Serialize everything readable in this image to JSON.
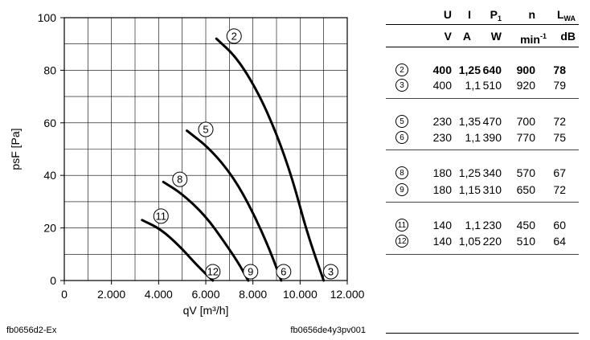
{
  "chart_data": {
    "type": "line",
    "xlabel": "qV [m³/h]",
    "ylabel": "psF [Pa]",
    "xlim": [
      0,
      12000
    ],
    "ylim": [
      0,
      100
    ],
    "x_ticks": [
      "0",
      "2.000",
      "4.000",
      "6.000",
      "8.000",
      "10.000",
      "12.000"
    ],
    "y_ticks": [
      "0",
      "20",
      "40",
      "60",
      "80",
      "100"
    ],
    "grid": true,
    "series": [
      {
        "name": "2",
        "x": [
          6450,
          7300,
          8200,
          9000,
          9700,
          10300,
          11000
        ],
        "y": [
          92,
          85,
          72,
          56,
          38,
          18,
          0
        ],
        "label_x": 7200,
        "label_y": 93
      },
      {
        "name": "5",
        "x": [
          5200,
          6200,
          7200,
          8000,
          8700,
          9200
        ],
        "y": [
          57,
          50,
          39,
          26,
          12,
          0
        ],
        "label_x": 6000,
        "label_y": 57.5
      },
      {
        "name": "8",
        "x": [
          4200,
          5000,
          6000,
          6800,
          7400,
          7800
        ],
        "y": [
          37.5,
          33,
          24.5,
          14.5,
          6.5,
          0
        ],
        "label_x": 4900,
        "label_y": 38.5
      },
      {
        "name": "11",
        "x": [
          3300,
          4100,
          4900,
          5500,
          6000,
          6300
        ],
        "y": [
          23,
          19.5,
          13,
          7,
          2.5,
          0
        ],
        "label_x": 4100,
        "label_y": 24.5
      }
    ],
    "end_labels": [
      {
        "name": "12",
        "x": 6300
      },
      {
        "name": "9",
        "x": 7900
      },
      {
        "name": "6",
        "x": 9300
      },
      {
        "name": "3",
        "x": 11300
      }
    ],
    "footer_left": "fb0656d2-Ex",
    "footer_right": "fb0656de4y3pv001"
  },
  "table": {
    "headers": {
      "U": "U",
      "I": "I",
      "P1_main": "P",
      "P1_sub": "1",
      "n": "n",
      "L_main": "L",
      "L_sub": "WA"
    },
    "units": {
      "U": "V",
      "I": "A",
      "P1": "W",
      "n_main": "min",
      "n_sup": "-1",
      "L": "dB"
    },
    "rows": [
      {
        "label": "2",
        "U": "400",
        "I": "1,25",
        "P1": "640",
        "n": "900",
        "L": "78",
        "bold": true
      },
      {
        "label": "3",
        "U": "400",
        "I": "1,1",
        "P1": "510",
        "n": "920",
        "L": "79",
        "bold": false
      },
      {
        "label": "5",
        "U": "230",
        "I": "1,35",
        "P1": "470",
        "n": "700",
        "L": "72",
        "bold": false
      },
      {
        "label": "6",
        "U": "230",
        "I": "1,1",
        "P1": "390",
        "n": "770",
        "L": "75",
        "bold": false
      },
      {
        "label": "8",
        "U": "180",
        "I": "1,25",
        "P1": "340",
        "n": "570",
        "L": "67",
        "bold": false
      },
      {
        "label": "9",
        "U": "180",
        "I": "1,15",
        "P1": "310",
        "n": "650",
        "L": "72",
        "bold": false
      },
      {
        "label": "11",
        "U": "140",
        "I": "1,1",
        "P1": "230",
        "n": "450",
        "L": "60",
        "bold": false
      },
      {
        "label": "12",
        "U": "140",
        "I": "1,05",
        "P1": "220",
        "n": "510",
        "L": "64",
        "bold": false
      }
    ]
  }
}
